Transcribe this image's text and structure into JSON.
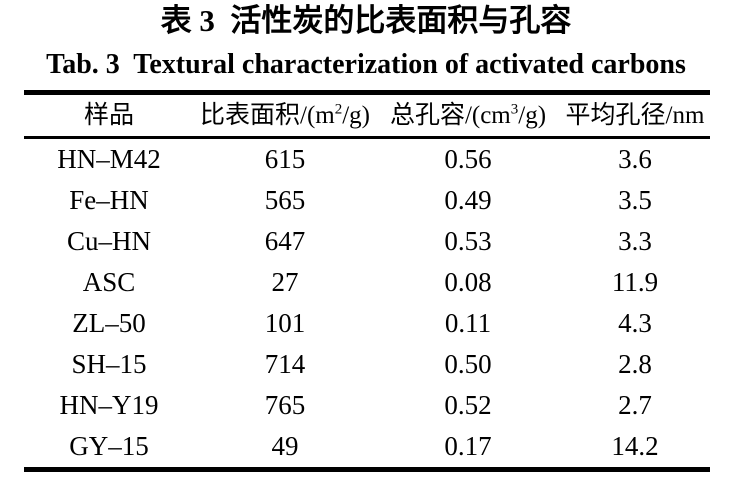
{
  "titles": {
    "zh": "表 3  活性炭的比表面积与孔容",
    "en": "Tab. 3  Textural characterization of activated carbons"
  },
  "table": {
    "headers": [
      {
        "pre": "样品",
        "sup": "",
        "post": ""
      },
      {
        "pre": "比表面积/(m",
        "sup": "2",
        "post": "/g)"
      },
      {
        "pre": "总孔容/(cm",
        "sup": "3",
        "post": "/g)"
      },
      {
        "pre": "平均孔径/nm",
        "sup": "",
        "post": ""
      }
    ],
    "rows": [
      {
        "sample": "HN–M42",
        "surface_area": "615",
        "pore_volume": "0.56",
        "avg_pore_diameter": "3.6"
      },
      {
        "sample": "Fe–HN",
        "surface_area": "565",
        "pore_volume": "0.49",
        "avg_pore_diameter": "3.5"
      },
      {
        "sample": "Cu–HN",
        "surface_area": "647",
        "pore_volume": "0.53",
        "avg_pore_diameter": "3.3"
      },
      {
        "sample": "ASC",
        "surface_area": "27",
        "pore_volume": "0.08",
        "avg_pore_diameter": "11.9"
      },
      {
        "sample": "ZL–50",
        "surface_area": "101",
        "pore_volume": "0.11",
        "avg_pore_diameter": "4.3"
      },
      {
        "sample": "SH–15",
        "surface_area": "714",
        "pore_volume": "0.50",
        "avg_pore_diameter": "2.8"
      },
      {
        "sample": "HN–Y19",
        "surface_area": "765",
        "pore_volume": "0.52",
        "avg_pore_diameter": "2.7"
      },
      {
        "sample": "GY–15",
        "surface_area": "49",
        "pore_volume": "0.17",
        "avg_pore_diameter": "14.2"
      }
    ]
  },
  "colors": {
    "text": "#000000",
    "background": "#ffffff",
    "rule": "#000000"
  },
  "chart_data": {
    "type": "table",
    "title": "表 3 活性炭的比表面积与孔容 / Tab. 3 Textural characterization of activated carbons",
    "columns": [
      "样品",
      "比表面积/(m2/g)",
      "总孔容/(cm3/g)",
      "平均孔径/nm"
    ],
    "rows": [
      [
        "HN–M42",
        615,
        0.56,
        3.6
      ],
      [
        "Fe–HN",
        565,
        0.49,
        3.5
      ],
      [
        "Cu–HN",
        647,
        0.53,
        3.3
      ],
      [
        "ASC",
        27,
        0.08,
        11.9
      ],
      [
        "ZL–50",
        101,
        0.11,
        4.3
      ],
      [
        "SH–15",
        714,
        0.5,
        2.8
      ],
      [
        "HN–Y19",
        765,
        0.52,
        2.7
      ],
      [
        "GY–15",
        49,
        0.17,
        14.2
      ]
    ]
  }
}
